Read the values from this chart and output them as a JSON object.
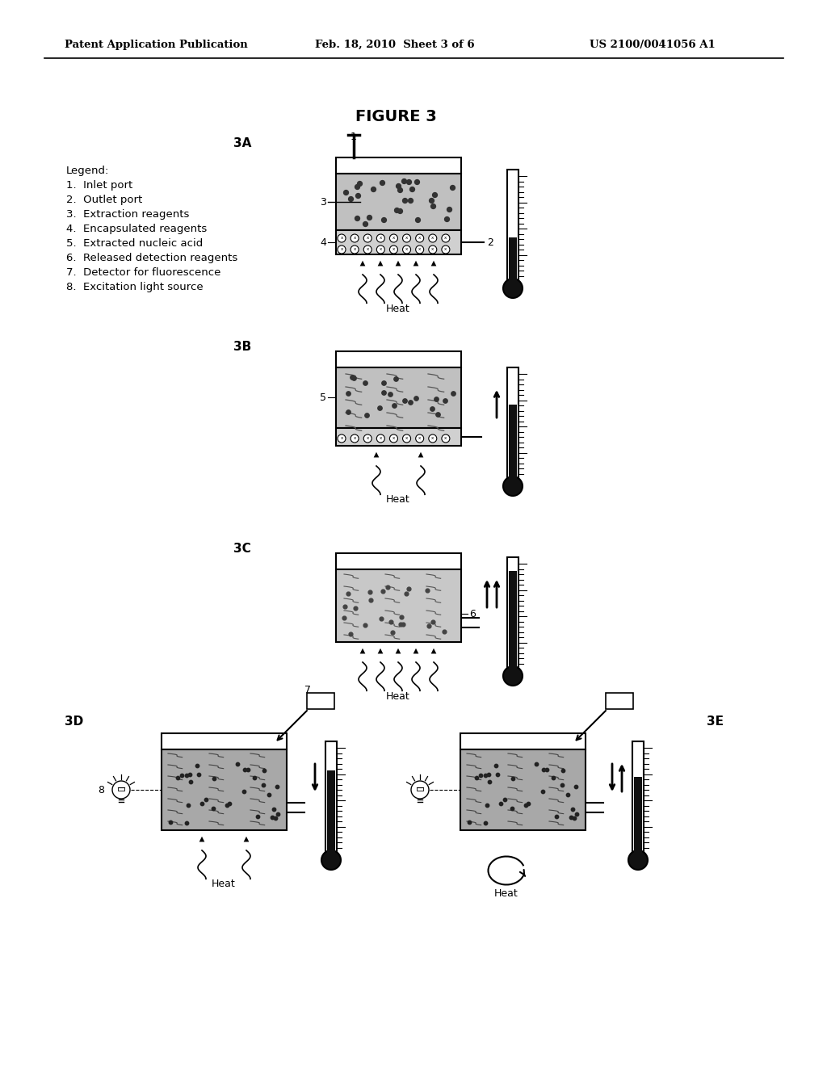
{
  "bg_color": "#ffffff",
  "header_left": "Patent Application Publication",
  "header_mid": "Feb. 18, 2010  Sheet 3 of 6",
  "header_right": "US 2100/0041056 A1",
  "figure_title": "FIGURE 3",
  "legend_title": "Legend:",
  "legend_items": [
    "1.  Inlet port",
    "2.  Outlet port",
    "3.  Extraction reagents",
    "4.  Encapsulated reagents",
    "5.  Extracted nucleic acid",
    "6.  Released detection reagents",
    "7.  Detector for fluorescence",
    "8.  Excitation light source"
  ]
}
